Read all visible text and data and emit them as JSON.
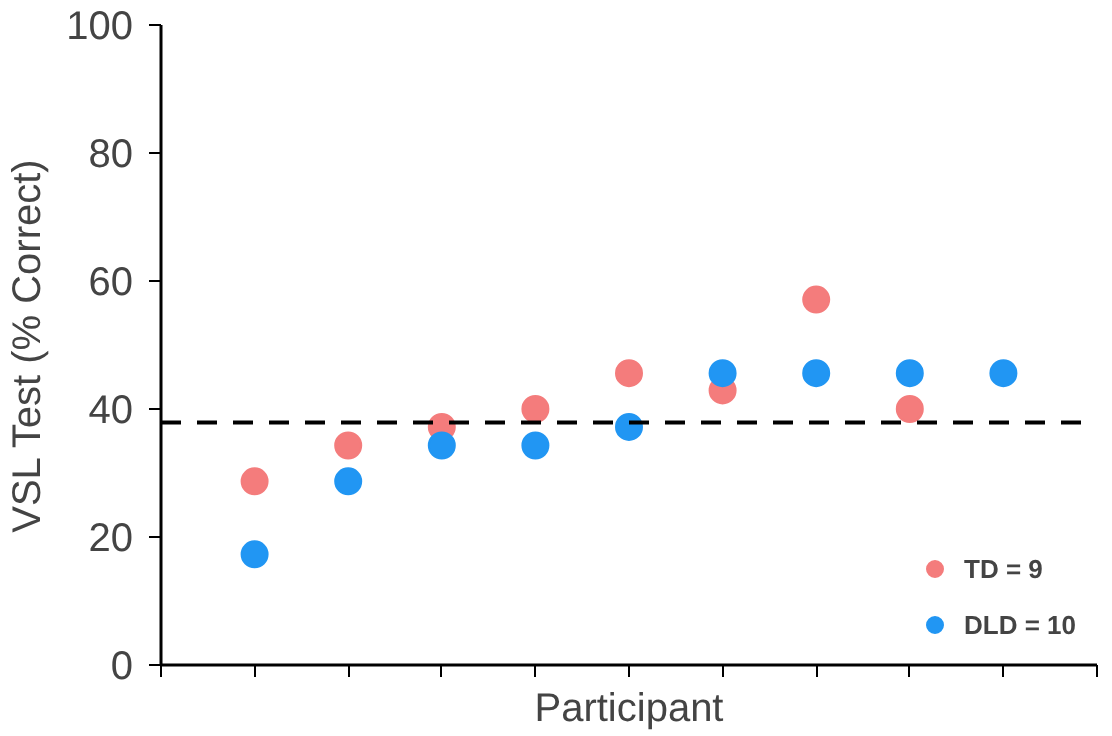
{
  "chart_data": {
    "type": "scatter",
    "xlabel": "Participant",
    "ylabel": "VSL Test (% Correct)",
    "categories": [
      null,
      null,
      null,
      null,
      null,
      null,
      null,
      null,
      null
    ],
    "ylim": [
      0,
      100
    ],
    "yticks": [
      0,
      20,
      40,
      60,
      80,
      100
    ],
    "grid": false,
    "legend": "bottom right",
    "marker": "circle",
    "series": [
      {
        "name": "TD = 9",
        "color": "#f47c7c",
        "values": [
          28.7,
          34.3,
          37.2,
          40,
          45.6,
          42.9,
          57.1,
          40,
          null
        ]
      },
      {
        "name": "DLD = 10",
        "color": "#2196f3",
        "values": [
          17.3,
          28.7,
          34.3,
          34.3,
          37.2,
          45.6,
          45.6,
          45.6,
          45.6
        ]
      }
    ],
    "ref_lines": [
      {
        "axis": "y",
        "value": 37.9,
        "label": null,
        "color": "#000000",
        "line_style": "dashed"
      }
    ]
  }
}
